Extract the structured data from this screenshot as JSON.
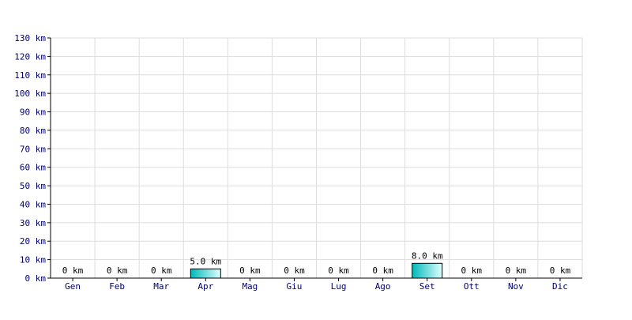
{
  "chart_data": {
    "type": "bar",
    "categories": [
      "Gen",
      "Feb",
      "Mar",
      "Apr",
      "Mag",
      "Giu",
      "Lug",
      "Ago",
      "Set",
      "Ott",
      "Nov",
      "Dic"
    ],
    "values": [
      0,
      0,
      0,
      5.0,
      0,
      0,
      0,
      0,
      8.0,
      0,
      0,
      0
    ],
    "data_labels": [
      "0 km",
      "0 km",
      "0 km",
      "5.0 km",
      "0 km",
      "0 km",
      "0 km",
      "0 km",
      "8.0 km",
      "0 km",
      "0 km",
      "0 km"
    ],
    "yticks": [
      0,
      10,
      20,
      30,
      40,
      50,
      60,
      70,
      80,
      90,
      100,
      110,
      120,
      130
    ],
    "ytick_labels": [
      "0 km",
      "10 km",
      "20 km",
      "30 km",
      "40 km",
      "50 km",
      "60 km",
      "70 km",
      "80 km",
      "90 km",
      "100 km",
      "110 km",
      "120 km",
      "130 km"
    ],
    "ylim": [
      0,
      130
    ],
    "grid": true,
    "legend": "none",
    "colors": {
      "bar_light": "#e0ffff",
      "bar_dark": "#00b8b8",
      "bar_border": "#000000",
      "grid": "#dddddd",
      "axis": "#000000",
      "tick_text": "#00006a"
    }
  }
}
